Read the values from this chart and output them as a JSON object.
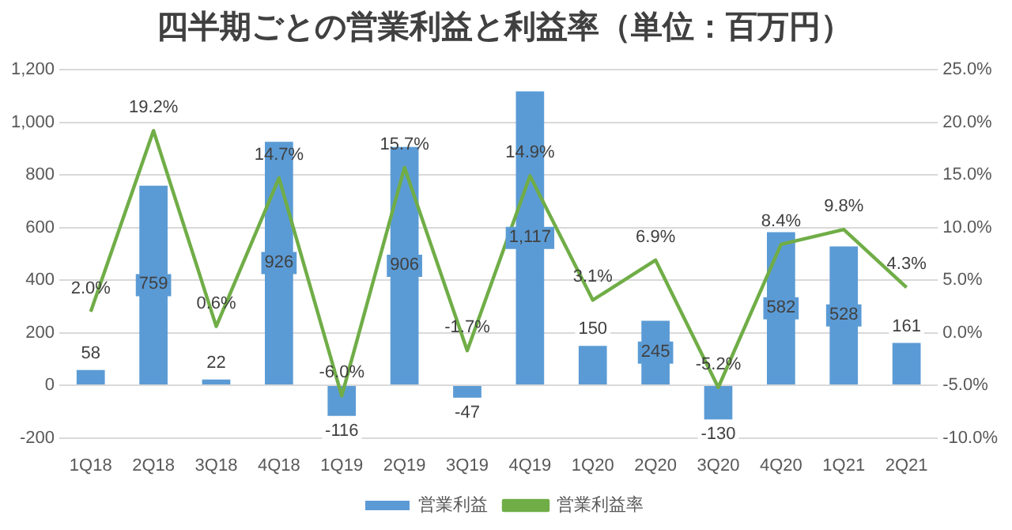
{
  "chart_data": {
    "type": "bar",
    "title": "四半期ごとの営業利益と利益率（単位：百万円）",
    "categories": [
      "1Q18",
      "2Q18",
      "3Q18",
      "4Q18",
      "1Q19",
      "2Q19",
      "3Q19",
      "4Q19",
      "1Q20",
      "2Q20",
      "3Q20",
      "4Q20",
      "1Q21",
      "2Q21"
    ],
    "series": [
      {
        "name": "営業利益",
        "type": "bar",
        "color": "#5b9bd5",
        "values": [
          58,
          759,
          22,
          926,
          -116,
          906,
          -47,
          1117,
          150,
          245,
          -130,
          582,
          528,
          161
        ],
        "value_labels": [
          "58",
          "759",
          "22",
          "926",
          "-116",
          "906",
          "-47",
          "1,117",
          "150",
          "245",
          "-130",
          "582",
          "528",
          "161"
        ]
      },
      {
        "name": "営業利益率",
        "type": "line",
        "axis": "y2",
        "color": "#70ad47",
        "values": [
          2.0,
          19.2,
          0.6,
          14.7,
          -6.0,
          15.7,
          -1.7,
          14.9,
          3.1,
          6.9,
          -5.2,
          8.4,
          9.8,
          4.3
        ],
        "value_labels": [
          "2.0%",
          "19.2%",
          "0.6%",
          "14.7%",
          "-6.0%",
          "15.7%",
          "-1.7%",
          "14.9%",
          "3.1%",
          "6.9%",
          "-5.2%",
          "8.4%",
          "9.8%",
          "4.3%"
        ]
      }
    ],
    "ylim": [
      -200,
      1200
    ],
    "yticks": [
      {
        "value": -200,
        "label": "-200"
      },
      0,
      200,
      400,
      600,
      800,
      {
        "value": 1000,
        "label": "1,000"
      },
      {
        "value": 1200,
        "label": "1,200"
      }
    ],
    "y2lim": [
      -10,
      25
    ],
    "y2ticks": [
      {
        "value": -10,
        "label": "-10.0%"
      },
      {
        "value": -5,
        "label": "-5.0%"
      },
      {
        "value": 0,
        "label": "0.0%"
      },
      {
        "value": 5,
        "label": "5.0%"
      },
      {
        "value": 10,
        "label": "10.0%"
      },
      {
        "value": 15,
        "label": "15.0%"
      },
      {
        "value": 20,
        "label": "20.0%"
      },
      {
        "value": 25,
        "label": "25.0%"
      }
    ],
    "grid": "y",
    "legend": "bottom",
    "marker": "none",
    "line_style": "solid"
  }
}
